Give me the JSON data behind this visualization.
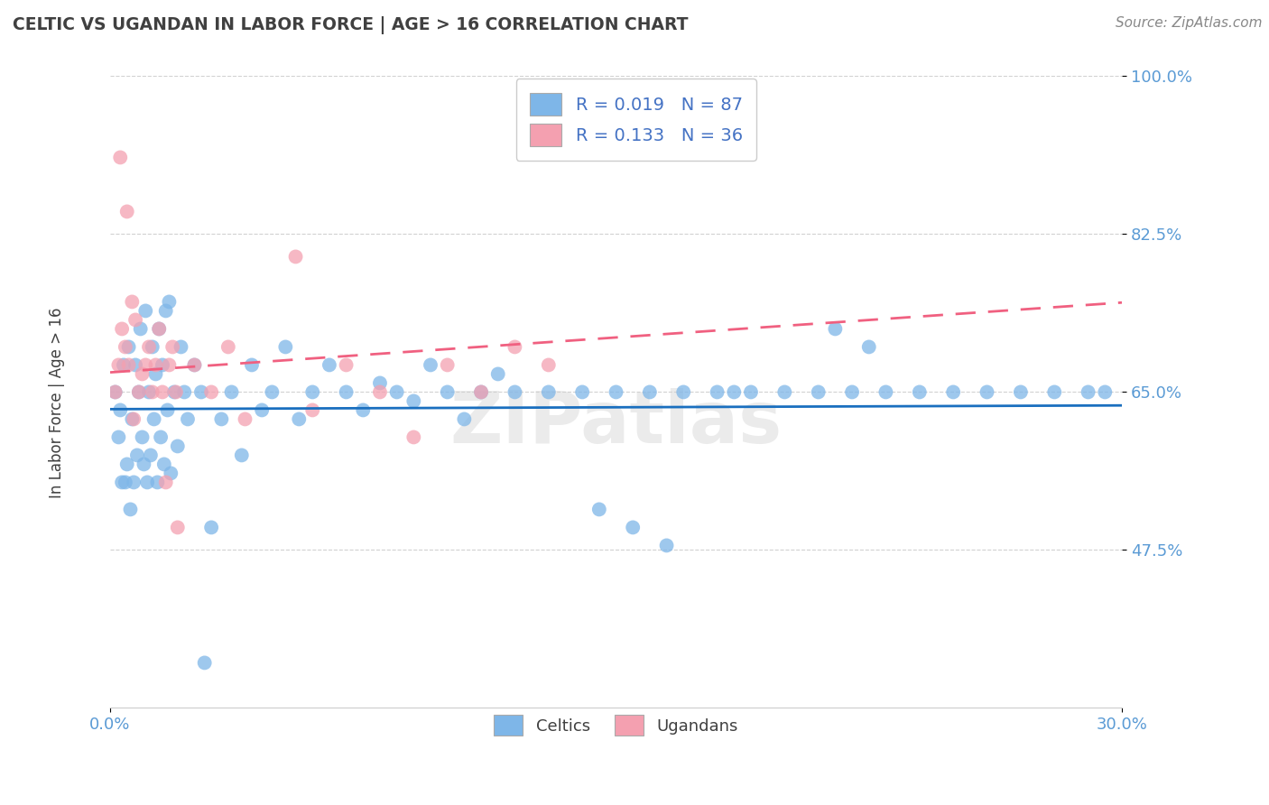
{
  "title": "CELTIC VS UGANDAN IN LABOR FORCE | AGE > 16 CORRELATION CHART",
  "source": "Source: ZipAtlas.com",
  "ylabel": "In Labor Force | Age > 16",
  "xlim": [
    0.0,
    30.0
  ],
  "ylim": [
    30.0,
    100.0
  ],
  "xticks": [
    0.0,
    30.0
  ],
  "xticklabels": [
    "0.0%",
    "30.0%"
  ],
  "yticks": [
    47.5,
    65.0,
    82.5,
    100.0
  ],
  "yticklabels": [
    "47.5%",
    "65.0%",
    "82.5%",
    "100.0%"
  ],
  "celtics_R": 0.019,
  "celtics_N": 87,
  "ugandans_R": 0.133,
  "ugandans_N": 36,
  "celtics_color": "#7EB6E8",
  "ugandans_color": "#F4A0B0",
  "celtics_line_color": "#1A6FBF",
  "ugandans_line_color": "#F06080",
  "legend_label_celtics": "Celtics",
  "legend_label_ugandans": "Ugandans",
  "background_color": "#ffffff",
  "grid_color": "#cccccc",
  "title_color": "#404040",
  "axis_label_color": "#404040",
  "tick_color": "#5B9BD5",
  "celtics_x": [
    0.15,
    0.25,
    0.35,
    0.4,
    0.5,
    0.55,
    0.6,
    0.65,
    0.7,
    0.75,
    0.8,
    0.85,
    0.9,
    0.95,
    1.0,
    1.05,
    1.1,
    1.15,
    1.2,
    1.25,
    1.3,
    1.35,
    1.4,
    1.45,
    1.5,
    1.55,
    1.6,
    1.65,
    1.7,
    1.8,
    1.9,
    2.0,
    2.1,
    2.2,
    2.3,
    2.5,
    2.7,
    3.0,
    3.3,
    3.6,
    3.9,
    4.2,
    4.5,
    4.8,
    5.2,
    5.6,
    6.0,
    6.5,
    7.0,
    7.5,
    8.0,
    8.5,
    9.0,
    9.5,
    10.0,
    10.5,
    11.0,
    11.5,
    12.0,
    13.0,
    14.0,
    14.5,
    15.0,
    15.5,
    16.0,
    16.5,
    17.0,
    18.0,
    18.5,
    19.0,
    20.0,
    21.0,
    21.5,
    22.0,
    22.5,
    23.0,
    24.0,
    25.0,
    26.0,
    27.0,
    28.0,
    29.0,
    29.5,
    0.3,
    0.45,
    1.75,
    2.8
  ],
  "celtics_y": [
    65.0,
    60.0,
    55.0,
    68.0,
    57.0,
    70.0,
    52.0,
    62.0,
    55.0,
    68.0,
    58.0,
    65.0,
    72.0,
    60.0,
    57.0,
    74.0,
    55.0,
    65.0,
    58.0,
    70.0,
    62.0,
    67.0,
    55.0,
    72.0,
    60.0,
    68.0,
    57.0,
    74.0,
    63.0,
    56.0,
    65.0,
    59.0,
    70.0,
    65.0,
    62.0,
    68.0,
    65.0,
    50.0,
    62.0,
    65.0,
    58.0,
    68.0,
    63.0,
    65.0,
    70.0,
    62.0,
    65.0,
    68.0,
    65.0,
    63.0,
    66.0,
    65.0,
    64.0,
    68.0,
    65.0,
    62.0,
    65.0,
    67.0,
    65.0,
    65.0,
    65.0,
    52.0,
    65.0,
    50.0,
    65.0,
    48.0,
    65.0,
    65.0,
    65.0,
    65.0,
    65.0,
    65.0,
    72.0,
    65.0,
    70.0,
    65.0,
    65.0,
    65.0,
    65.0,
    65.0,
    65.0,
    65.0,
    65.0,
    63.0,
    55.0,
    75.0,
    35.0
  ],
  "ugandans_x": [
    0.15,
    0.25,
    0.35,
    0.45,
    0.55,
    0.65,
    0.75,
    0.85,
    0.95,
    1.05,
    1.15,
    1.25,
    1.35,
    1.45,
    1.55,
    1.65,
    1.75,
    1.85,
    1.95,
    2.5,
    3.0,
    3.5,
    4.0,
    5.5,
    6.0,
    7.0,
    8.0,
    9.0,
    10.0,
    11.0,
    12.0,
    13.0,
    0.3,
    0.5,
    0.7,
    2.0
  ],
  "ugandans_y": [
    65.0,
    68.0,
    72.0,
    70.0,
    68.0,
    75.0,
    73.0,
    65.0,
    67.0,
    68.0,
    70.0,
    65.0,
    68.0,
    72.0,
    65.0,
    55.0,
    68.0,
    70.0,
    65.0,
    68.0,
    65.0,
    70.0,
    62.0,
    80.0,
    63.0,
    68.0,
    65.0,
    60.0,
    68.0,
    65.0,
    70.0,
    68.0,
    91.0,
    85.0,
    62.0,
    50.0
  ]
}
